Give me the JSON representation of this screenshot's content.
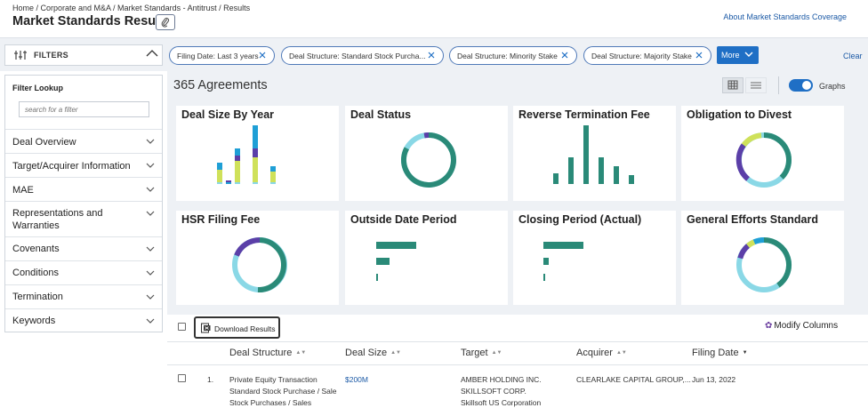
{
  "header": {
    "breadcrumb": "Home / Corporate and M&A / Market Standards - Antitrust / Results",
    "title": "Market Standards Results",
    "about_link": "About Market Standards Coverage"
  },
  "filters": {
    "label": "FILTERS",
    "lookup_label": "Filter Lookup",
    "lookup_placeholder": "search for a filter",
    "items": [
      {
        "label": "Deal Overview"
      },
      {
        "label": "Target/Acquirer Information"
      },
      {
        "label": "MAE"
      },
      {
        "label": "Representations and Warranties"
      },
      {
        "label": "Covenants"
      },
      {
        "label": "Conditions"
      },
      {
        "label": "Termination"
      },
      {
        "label": "Keywords"
      }
    ]
  },
  "chips": [
    {
      "label": "Filing Date: Last 3 years"
    },
    {
      "label": "Deal Structure: Standard Stock Purcha..."
    },
    {
      "label": "Deal Structure: Minority Stake"
    },
    {
      "label": "Deal Structure: Majority Stake"
    }
  ],
  "more_label": "More",
  "clear_label": "Clear",
  "summary": {
    "count_label": "365 Agreements",
    "graphs_label": "Graphs",
    "graphs_on": true
  },
  "colors": {
    "teal": "#2a8a78",
    "light_blue": "#8ad8e6",
    "purple": "#5b3fa8",
    "lime": "#cfe15a",
    "blue": "#1f9fd6",
    "accent": "#1f6fc5"
  },
  "cards": [
    {
      "title": "Deal Size By Year"
    },
    {
      "title": "Deal Status"
    },
    {
      "title": "Reverse Termination Fee"
    },
    {
      "title": "Obligation to Divest"
    },
    {
      "title": "HSR Filing Fee"
    },
    {
      "title": "Outside Date Period"
    },
    {
      "title": "Closing Period (Actual)"
    },
    {
      "title": "General Efforts Standard"
    }
  ],
  "results": {
    "download_label": "Download Results",
    "modify_label": "Modify Columns",
    "columns": [
      "Deal Structure",
      "Deal Size",
      "Target",
      "Acquirer",
      "Filing Date"
    ],
    "rows": [
      {
        "index": "1.",
        "structure": [
          "Private Equity Transaction",
          "Standard Stock Purchase / Sale",
          "Stock Purchases / Sales"
        ],
        "size": "$200M",
        "target": [
          "AMBER HOLDING INC.",
          "SKILLSOFT CORP.",
          "Skillsoft US Corporation"
        ],
        "acquirer": "CLEARLAKE CAPITAL GROUP,...",
        "filing_date": "Jun 13, 2022"
      }
    ]
  }
}
